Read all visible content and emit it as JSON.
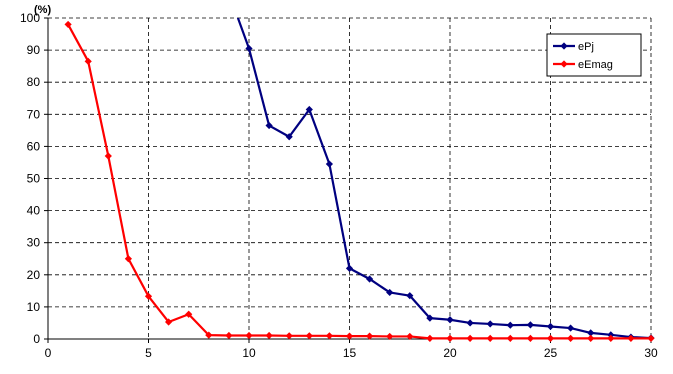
{
  "chart_data": {
    "type": "line",
    "title": "",
    "xlabel": "",
    "ylabel": "(%)",
    "xlim": [
      0,
      30
    ],
    "ylim": [
      0,
      100
    ],
    "x_ticks": [
      0,
      5,
      10,
      15,
      20,
      25,
      30
    ],
    "y_ticks": [
      0,
      10,
      20,
      30,
      40,
      50,
      60,
      70,
      80,
      90,
      100
    ],
    "grid": "dashed",
    "legend_position": "top-right",
    "series": [
      {
        "name": "ePj",
        "color": "#000080",
        "marker": "diamond",
        "points": [
          [
            9.45,
            100
          ],
          [
            10,
            90.5
          ],
          [
            11,
            66.5
          ],
          [
            12,
            63
          ],
          [
            13,
            71.5
          ],
          [
            14,
            54.5
          ],
          [
            15,
            22
          ],
          [
            16,
            18.7
          ],
          [
            17,
            14.5
          ],
          [
            18,
            13.5
          ],
          [
            19,
            6.5
          ],
          [
            20,
            6
          ],
          [
            21,
            5
          ],
          [
            22,
            4.7
          ],
          [
            23,
            4.3
          ],
          [
            24,
            4.4
          ],
          [
            25,
            3.9
          ],
          [
            26,
            3.4
          ],
          [
            27,
            1.9
          ],
          [
            28,
            1.3
          ],
          [
            29,
            0.6
          ],
          [
            30,
            0.3
          ]
        ]
      },
      {
        "name": "eEmag",
        "color": "#ff0000",
        "marker": "diamond",
        "points": [
          [
            1,
            98
          ],
          [
            2,
            86.5
          ],
          [
            3,
            57
          ],
          [
            4,
            25
          ],
          [
            5,
            13.3
          ],
          [
            6,
            5.3
          ],
          [
            7,
            7.7
          ],
          [
            8,
            1.2
          ],
          [
            9,
            1.1
          ],
          [
            10,
            1.1
          ],
          [
            11,
            1.1
          ],
          [
            12,
            1
          ],
          [
            13,
            1
          ],
          [
            14,
            1
          ],
          [
            15,
            0.9
          ],
          [
            16,
            0.9
          ],
          [
            17,
            0.8
          ],
          [
            18,
            0.8
          ],
          [
            19,
            0.2
          ],
          [
            20,
            0.2
          ],
          [
            21,
            0.2
          ],
          [
            22,
            0.2
          ],
          [
            23,
            0.2
          ],
          [
            24,
            0.2
          ],
          [
            25,
            0.2
          ],
          [
            26,
            0.2
          ],
          [
            27,
            0.2
          ],
          [
            28,
            0.2
          ],
          [
            29,
            0.2
          ],
          [
            30,
            0.2
          ]
        ]
      }
    ]
  }
}
